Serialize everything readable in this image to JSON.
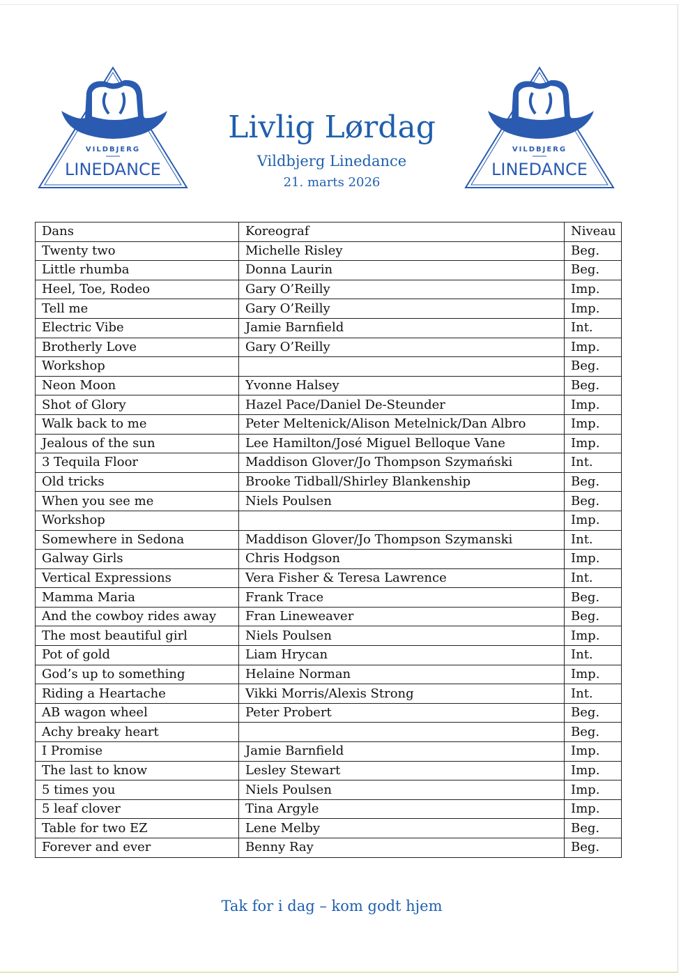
{
  "header": {
    "title": "Livlig Lørdag",
    "subtitle": "Vildbjerg Linedance",
    "date": "21. marts 2026",
    "logo_text_top": "VILDBJERG",
    "logo_text_main": "LINEDANCE",
    "brand_color": "#1f5fad"
  },
  "table": {
    "columns": [
      "Dans",
      "Koreograf",
      "Niveau"
    ],
    "rows": [
      [
        "Twenty two",
        "Michelle Risley",
        "Beg."
      ],
      [
        "Little rhumba",
        "Donna Laurin",
        "Beg."
      ],
      [
        "Heel, Toe, Rodeo",
        "Gary O’Reilly",
        "Imp."
      ],
      [
        "Tell me",
        "Gary O’Reilly",
        "Imp."
      ],
      [
        "Electric Vibe",
        "Jamie Barnfield",
        "Int."
      ],
      [
        "Brotherly Love",
        "Gary O’Reilly",
        "Imp."
      ],
      [
        "Workshop",
        "",
        "Beg."
      ],
      [
        "Neon Moon",
        "Yvonne Halsey",
        "Beg."
      ],
      [
        "Shot of Glory",
        "Hazel Pace/Daniel De-Steunder",
        "Imp."
      ],
      [
        "Walk back to me",
        "Peter Meltenick/Alison Metelnick/Dan Albro",
        "Imp."
      ],
      [
        "Jealous of the sun",
        "Lee Hamilton/José Miguel Belloque Vane",
        "Imp."
      ],
      [
        "3 Tequila Floor",
        "Maddison Glover/Jo Thompson Szymański",
        "Int."
      ],
      [
        "Old tricks",
        "Brooke Tidball/Shirley Blankenship",
        "Beg."
      ],
      [
        "When you see me",
        "Niels Poulsen",
        "Beg."
      ],
      [
        "Workshop",
        "",
        "Imp."
      ],
      [
        "Somewhere in Sedona",
        "Maddison Glover/Jo Thompson Szymanski",
        "Int."
      ],
      [
        "Galway Girls",
        "Chris Hodgson",
        "Imp."
      ],
      [
        "Vertical Expressions",
        "Vera Fisher & Teresa Lawrence",
        "Int."
      ],
      [
        "Mamma Maria",
        "Frank Trace",
        "Beg."
      ],
      [
        "And the cowboy rides away",
        "Fran Lineweaver",
        "Beg."
      ],
      [
        "The most beautiful girl",
        "Niels Poulsen",
        "Imp."
      ],
      [
        "Pot of gold",
        "Liam Hrycan",
        "Int."
      ],
      [
        "God’s up to something",
        "Helaine Norman",
        "Imp."
      ],
      [
        "Riding a Heartache",
        "Vikki Morris/Alexis Strong",
        "Int."
      ],
      [
        "AB wagon wheel",
        "Peter Probert",
        "Beg."
      ],
      [
        "Achy breaky heart",
        "",
        "Beg."
      ],
      [
        "I Promise",
        "Jamie Barnfield",
        "Imp."
      ],
      [
        "The last to know",
        "Lesley Stewart",
        "Imp."
      ],
      [
        "5 times you",
        "Niels Poulsen",
        "Imp."
      ],
      [
        "5 leaf clover",
        "Tina Argyle",
        "Imp."
      ],
      [
        "Table for two EZ",
        "Lene Melby",
        "Beg."
      ],
      [
        "Forever and ever",
        "Benny Ray",
        "Beg."
      ]
    ]
  },
  "footer": {
    "text": "Tak for i dag – kom godt hjem"
  }
}
